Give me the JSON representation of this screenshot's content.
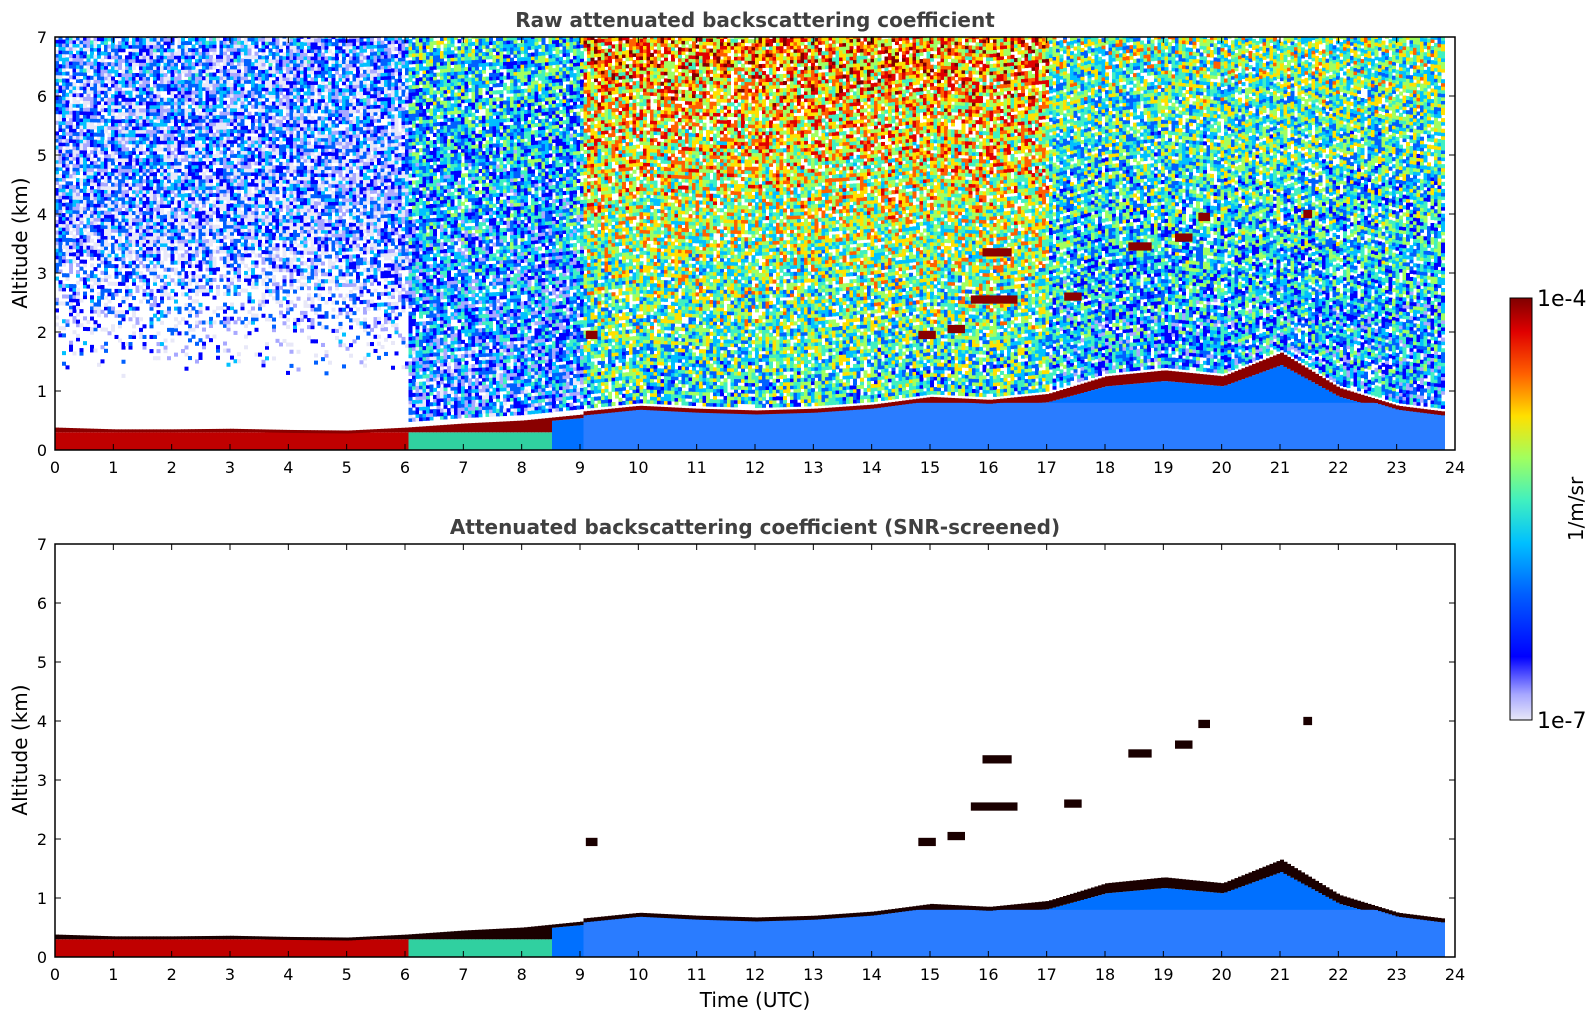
{
  "chart_data": [
    {
      "type": "heatmap",
      "title": "Raw attenuated backscattering coefficient",
      "xlabel": "",
      "ylabel": "Altitude (km)",
      "xlim": [
        0,
        24
      ],
      "ylim": [
        0,
        7
      ],
      "x_ticks": [
        "0",
        "1",
        "2",
        "3",
        "4",
        "5",
        "6",
        "7",
        "8",
        "9",
        "10",
        "11",
        "12",
        "13",
        "14",
        "15",
        "16",
        "17",
        "18",
        "19",
        "20",
        "21",
        "22",
        "23",
        "24"
      ],
      "y_ticks": [
        "0",
        "1",
        "2",
        "3",
        "4",
        "5",
        "6",
        "7"
      ],
      "grid": false,
      "data_end_time": 23.8,
      "boundary_layer_top": [
        [
          0,
          0.38
        ],
        [
          1,
          0.35
        ],
        [
          2,
          0.35
        ],
        [
          3,
          0.36
        ],
        [
          4,
          0.34
        ],
        [
          5,
          0.33
        ],
        [
          6,
          0.38
        ],
        [
          7,
          0.45
        ],
        [
          8,
          0.5
        ],
        [
          9,
          0.6
        ],
        [
          10,
          0.7
        ],
        [
          11,
          0.65
        ],
        [
          12,
          0.62
        ],
        [
          13,
          0.65
        ],
        [
          14,
          0.72
        ],
        [
          15,
          0.85
        ],
        [
          16,
          0.8
        ],
        [
          17,
          0.9
        ],
        [
          18,
          1.2
        ],
        [
          19,
          1.3
        ],
        [
          20,
          1.2
        ],
        [
          21,
          1.6
        ],
        [
          22,
          1.0
        ],
        [
          23,
          0.7
        ],
        [
          23.8,
          0.6
        ]
      ],
      "cloud_layers": [
        {
          "t0": 9.1,
          "t1": 9.3,
          "z": 1.95
        },
        {
          "t0": 14.8,
          "t1": 15.1,
          "z": 1.95
        },
        {
          "t0": 15.3,
          "t1": 15.6,
          "z": 2.05
        },
        {
          "t0": 15.7,
          "t1": 16.5,
          "z": 2.55
        },
        {
          "t0": 15.9,
          "t1": 16.4,
          "z": 3.35
        },
        {
          "t0": 17.3,
          "t1": 17.6,
          "z": 2.6
        },
        {
          "t0": 18.4,
          "t1": 18.8,
          "z": 3.45
        },
        {
          "t0": 19.2,
          "t1": 19.5,
          "z": 3.6
        },
        {
          "t0": 19.6,
          "t1": 19.8,
          "z": 3.95
        },
        {
          "t0": 21.4,
          "t1": 21.55,
          "z": 4.0
        }
      ]
    },
    {
      "type": "heatmap",
      "title": "Attenuated backscattering coefficient (SNR-screened)",
      "xlabel": "Time (UTC)",
      "ylabel": "Altitude (km)",
      "xlim": [
        0,
        24
      ],
      "ylim": [
        0,
        7
      ],
      "x_ticks": [
        "0",
        "1",
        "2",
        "3",
        "4",
        "5",
        "6",
        "7",
        "8",
        "9",
        "10",
        "11",
        "12",
        "13",
        "14",
        "15",
        "16",
        "17",
        "18",
        "19",
        "20",
        "21",
        "22",
        "23",
        "24"
      ],
      "y_ticks": [
        "0",
        "1",
        "2",
        "3",
        "4",
        "5",
        "6",
        "7"
      ],
      "grid": false
    }
  ],
  "colorbar": {
    "max_label": "1e-4",
    "min_label": "1e-7",
    "units_label": "1/m/sr",
    "scale": "log",
    "colors": [
      "#e8e8f8",
      "#a8a8ff",
      "#0000ff",
      "#0060ff",
      "#00c0ff",
      "#40f0c0",
      "#a0ff60",
      "#ffe000",
      "#ff6000",
      "#e00000",
      "#800000"
    ]
  }
}
